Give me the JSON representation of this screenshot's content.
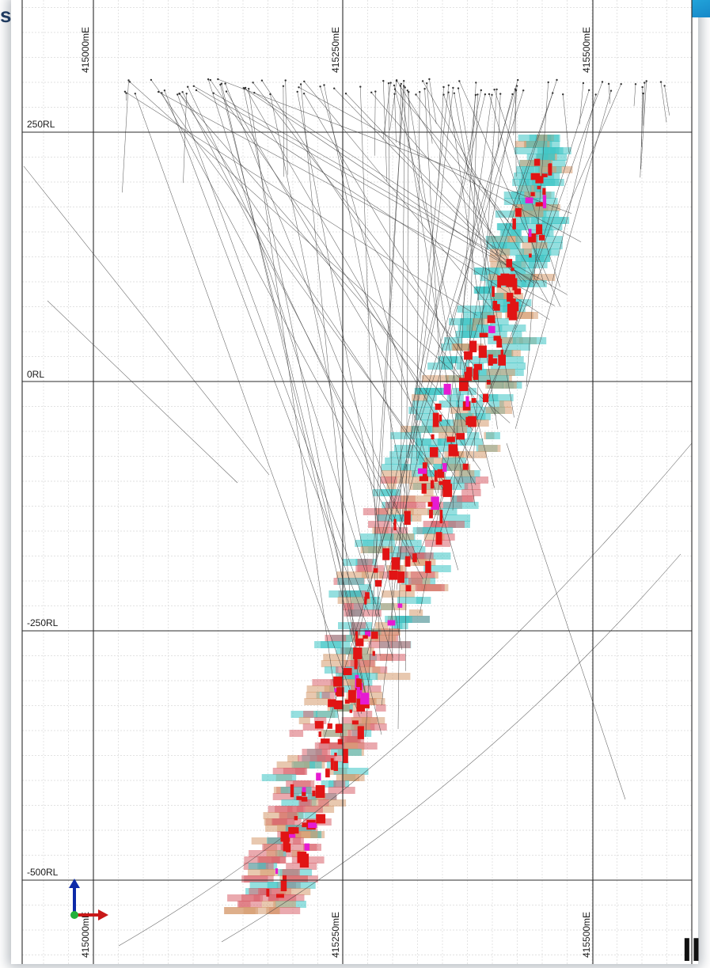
{
  "header": {
    "corner_glyph": "s",
    "bottom_right_glyph": "II"
  },
  "axes": {
    "easting_top": [
      "415000mE",
      "415250mE",
      "415500mE"
    ],
    "easting_bottom": [
      "415000mE",
      "415250mE",
      "415500mE"
    ],
    "rl_labels": [
      "250RL",
      "0RL",
      "-250RL",
      "-500RL"
    ]
  },
  "colors": {
    "model_cyan": "#3cc4c4",
    "model_brown": "#d59a6e",
    "model_pink": "#d9636b",
    "intercept_red": "#e11414",
    "intercept_magenta": "#e61ad2",
    "axis_blue": "#0d2aa8",
    "axis_red": "#c81818",
    "axis_green": "#22b03a"
  },
  "orientation_icon": {
    "name": "axis-triad-icon"
  }
}
